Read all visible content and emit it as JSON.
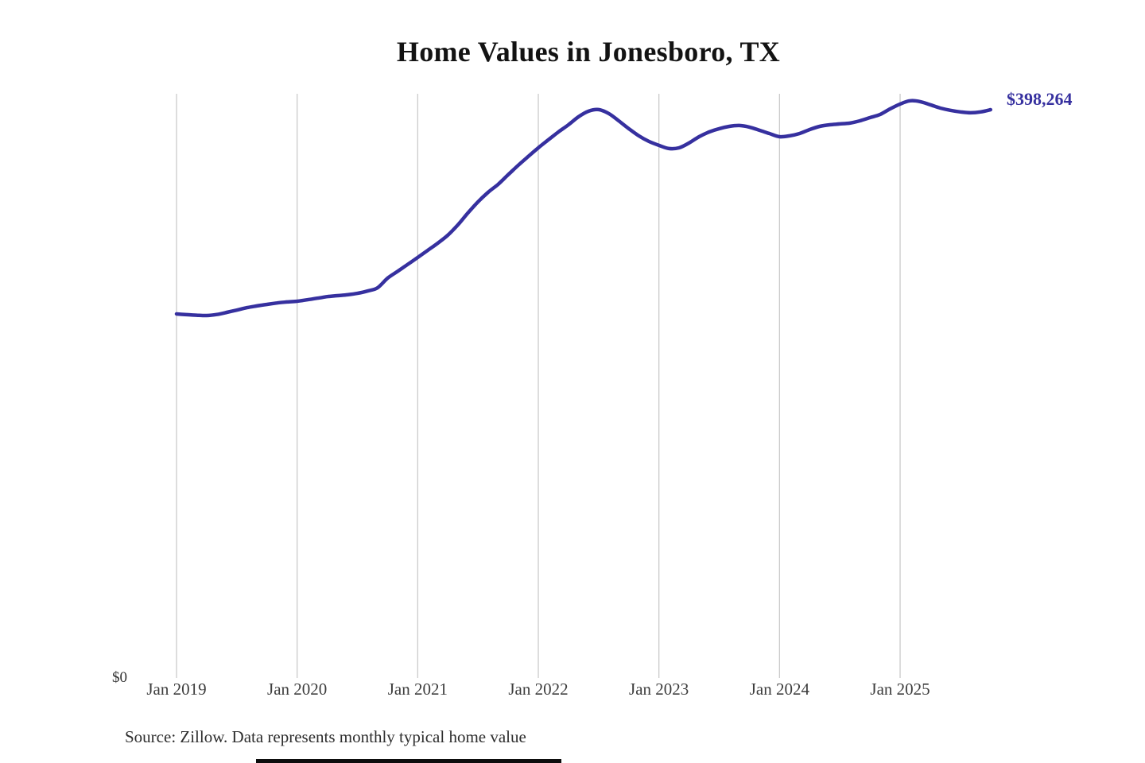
{
  "title": "Home Values in Jonesboro, TX",
  "source_note": "Source: Zillow. Data represents monthly typical home value",
  "end_value_label": "$398,264",
  "y_axis": {
    "zero_label": "$0"
  },
  "colors": {
    "line": "#36309f",
    "end_label": "#36309f",
    "gridline": "#cbcbcb",
    "title_text": "#131313",
    "axis_text": "#3d3d3d",
    "source_text": "#2e2e2e",
    "background": "#ffffff"
  },
  "chart_data": {
    "type": "line",
    "title": "Home Values in Jonesboro, TX",
    "series_name": "Monthly typical home value",
    "unit": "USD",
    "xlabel": "",
    "ylabel": "",
    "ylim": [
      0,
      410000
    ],
    "grid": "vertical-yearly-gridlines",
    "legend_position": "none",
    "x_tick_labels": [
      "Jan 2019",
      "Jan 2020",
      "Jan 2021",
      "Jan 2022",
      "Jan 2023",
      "Jan 2024",
      "Jan 2025"
    ],
    "y_tick_labels": [
      "$0"
    ],
    "annotations": [
      {
        "text": "$398,264",
        "position": "end-of-line"
      }
    ],
    "x": [
      "2019-01",
      "2019-02",
      "2019-03",
      "2019-04",
      "2019-05",
      "2019-06",
      "2019-07",
      "2019-08",
      "2019-09",
      "2019-10",
      "2019-11",
      "2019-12",
      "2020-01",
      "2020-02",
      "2020-03",
      "2020-04",
      "2020-05",
      "2020-06",
      "2020-07",
      "2020-08",
      "2020-09",
      "2020-10",
      "2020-11",
      "2020-12",
      "2021-01",
      "2021-02",
      "2021-03",
      "2021-04",
      "2021-05",
      "2021-06",
      "2021-07",
      "2021-08",
      "2021-09",
      "2021-10",
      "2021-11",
      "2021-12",
      "2022-01",
      "2022-02",
      "2022-03",
      "2022-04",
      "2022-05",
      "2022-06",
      "2022-07",
      "2022-08",
      "2022-09",
      "2022-10",
      "2022-11",
      "2022-12",
      "2023-01",
      "2023-02",
      "2023-03",
      "2023-04",
      "2023-05",
      "2023-06",
      "2023-07",
      "2023-08",
      "2023-09",
      "2023-10",
      "2023-11",
      "2023-12",
      "2024-01",
      "2024-02",
      "2024-03",
      "2024-04",
      "2024-05",
      "2024-06",
      "2024-07",
      "2024-08",
      "2024-09",
      "2024-10",
      "2024-11",
      "2024-12",
      "2025-01",
      "2025-02",
      "2025-03",
      "2025-04",
      "2025-05",
      "2025-06",
      "2025-07",
      "2025-08",
      "2025-09",
      "2025-10"
    ],
    "values": [
      255500,
      255000,
      254600,
      254400,
      255100,
      256600,
      258200,
      259900,
      261100,
      262200,
      263200,
      263900,
      264400,
      265400,
      266500,
      267600,
      268300,
      268900,
      269900,
      271500,
      273800,
      280500,
      285300,
      290100,
      295000,
      300000,
      305000,
      310600,
      317800,
      326100,
      333900,
      340500,
      346100,
      352800,
      359400,
      365600,
      371600,
      377200,
      382700,
      387700,
      393300,
      397200,
      398300,
      395600,
      390500,
      385000,
      380000,
      376100,
      373300,
      371100,
      371600,
      375000,
      379400,
      382700,
      385000,
      386600,
      387200,
      386100,
      383900,
      381600,
      379400,
      380000,
      381600,
      384400,
      386600,
      387700,
      388300,
      388900,
      390500,
      392700,
      394900,
      398800,
      402200,
      404500,
      403900,
      401700,
      399400,
      397800,
      396700,
      396100,
      396700,
      398264
    ],
    "final_value": 398264
  }
}
